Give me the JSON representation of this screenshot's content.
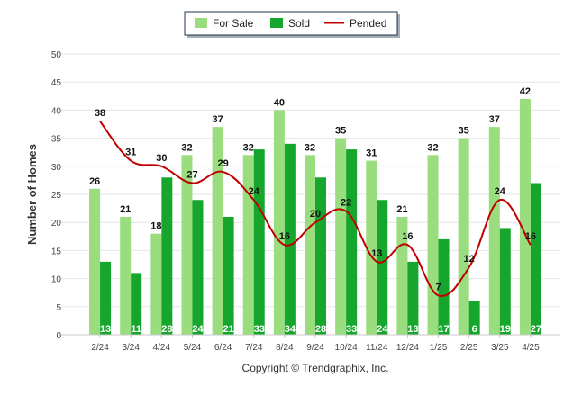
{
  "legend": {
    "items": [
      {
        "label": "For Sale",
        "color": "#99dd7f"
      },
      {
        "label": "Sold",
        "color": "#16a62e"
      },
      {
        "label": "Pended",
        "color": "#c00000"
      }
    ]
  },
  "footer": {
    "copyright": "Copyright © Trendgraphix, Inc."
  },
  "chart_data": {
    "type": "bar",
    "title": "",
    "xlabel": "",
    "ylabel": "Number of Homes",
    "ylim": [
      0,
      50
    ],
    "yticks": [
      0,
      5,
      10,
      15,
      20,
      25,
      30,
      35,
      40,
      45,
      50
    ],
    "grid": true,
    "legend_position": "top-center",
    "categories": [
      "2/24",
      "3/24",
      "4/24",
      "5/24",
      "6/24",
      "7/24",
      "8/24",
      "9/24",
      "10/24",
      "11/24",
      "12/24",
      "1/25",
      "2/25",
      "3/25",
      "4/25"
    ],
    "series": [
      {
        "name": "For Sale",
        "type": "bar",
        "color": "#99dd7f",
        "values": [
          26,
          21,
          18,
          32,
          37,
          32,
          40,
          32,
          35,
          31,
          21,
          32,
          35,
          37,
          42
        ]
      },
      {
        "name": "Sold",
        "type": "bar",
        "color": "#16a62e",
        "values": [
          13,
          11,
          28,
          24,
          21,
          33,
          34,
          28,
          33,
          24,
          13,
          17,
          6,
          19,
          27
        ]
      },
      {
        "name": "Pended",
        "type": "line",
        "color": "#c00000",
        "values": [
          38,
          31,
          30,
          27,
          29,
          24,
          16,
          20,
          22,
          13,
          16,
          7,
          12,
          24,
          16
        ]
      }
    ]
  }
}
